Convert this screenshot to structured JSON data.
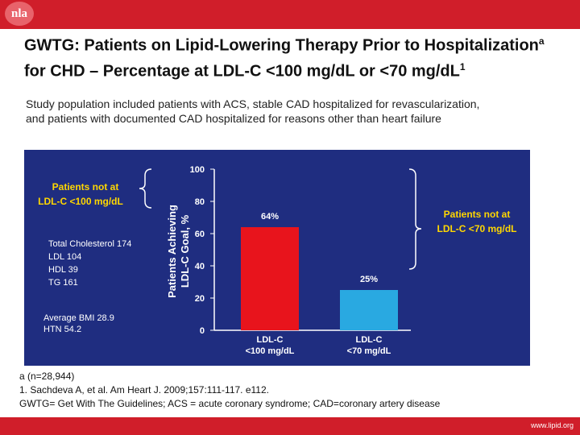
{
  "logo_text": "nla",
  "title": "GWTG: Patients on Lipid-Lowering Therapy Prior to Hospitalization",
  "title_sup": "a",
  "title_rest": " for CHD – Percentage at LDL-C <100 mg/dL or <70 mg/dL",
  "title_sup2": "1",
  "subtitle": "Study population included patients with ACS, stable CAD hospitalized for revascularization, and patients with documented CAD hospitalized for reasons other than heart failure",
  "chart_data": {
    "type": "bar",
    "categories": [
      "LDL-C\n<100 mg/dL",
      "LDL-C\n<70 mg/dL"
    ],
    "values": [
      64,
      25
    ],
    "value_labels": [
      "64%",
      "25%"
    ],
    "bar_colors": [
      "#e8141c",
      "#29a9e1"
    ],
    "ylabel_line1": "Patients Achieving",
    "ylabel_line2": "LDL-C Goal, %",
    "ylim": [
      0,
      100
    ],
    "yticks": [
      0,
      20,
      40,
      60,
      80,
      100
    ],
    "annotation_left": [
      "Patients not at",
      "LDL-C <100 mg/dL"
    ],
    "annotation_right": [
      "Patients not at",
      "LDL-C <70 mg/dL"
    ],
    "baseline_stats": [
      "Total Cholesterol 174",
      "LDL 104",
      "HDL 39",
      "TG 161"
    ],
    "other_stats": [
      "Average BMI 28.9",
      "HTN  54.2"
    ],
    "background": "#1f2d80",
    "annotation_color": "#ffd700"
  },
  "footnotes": [
    "a (n=28,944)",
    "1.   Sachdeva A, et al. Am Heart J. 2009;157:111-117. e112.",
    "GWTG= Get With The Guidelines; ACS = acute coronary syndrome; CAD=coronary artery disease"
  ],
  "url": "www.lipid.org"
}
